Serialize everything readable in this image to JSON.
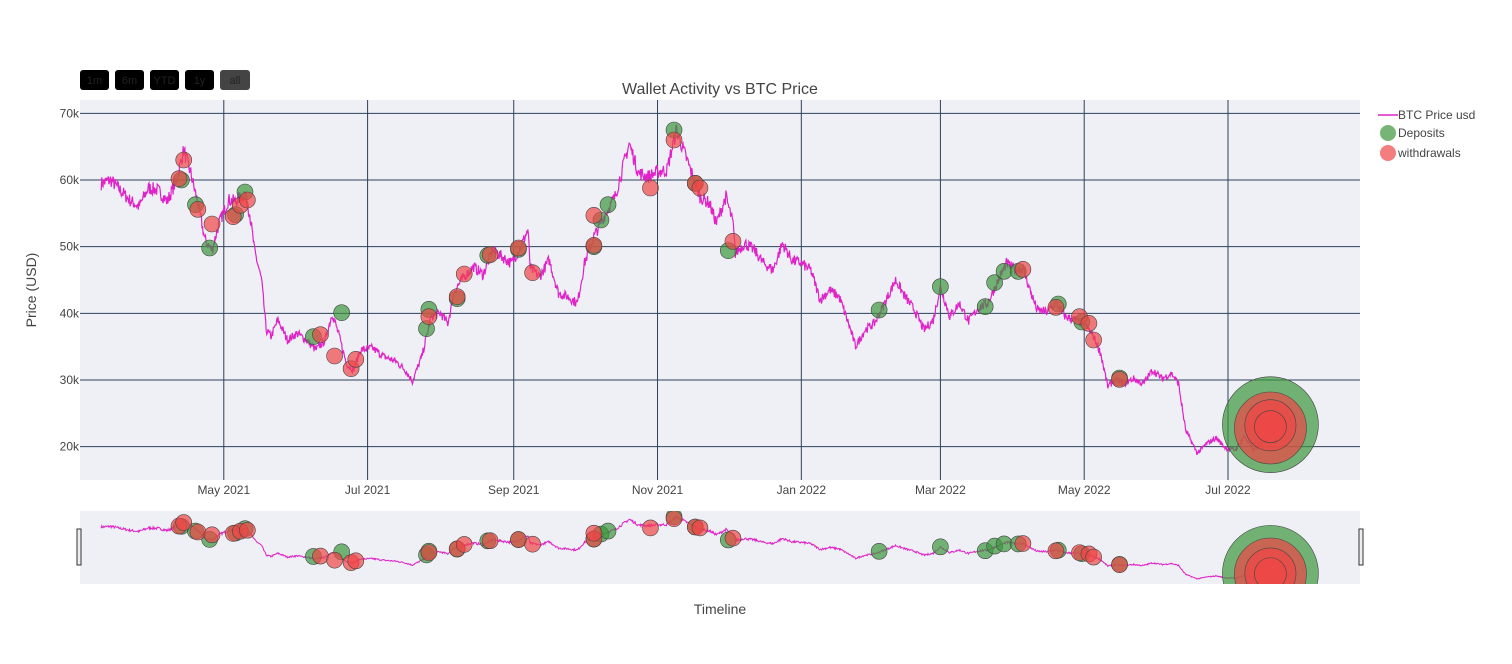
{
  "range_buttons": [
    {
      "label": "1m",
      "active": false
    },
    {
      "label": "6m",
      "active": false
    },
    {
      "label": "YTD",
      "active": false
    },
    {
      "label": "1y",
      "active": false
    },
    {
      "label": "all",
      "active": true
    }
  ],
  "colors": {
    "price_line": "#e022c8",
    "deposit_fill": "#3c963c",
    "withdrawal_fill": "#f04646",
    "plot_bg": "#eef0f5",
    "grid": "#2e3f5c"
  },
  "chart_data": {
    "type": "line",
    "title": "Wallet Activity vs BTC Price",
    "xlabel": "Timeline",
    "ylabel": "Price (USD)",
    "xlim": [
      "2021-03-01",
      "2022-08-26"
    ],
    "ylim": [
      15000,
      72000
    ],
    "x_ticks": [
      {
        "date": "2021-05-01",
        "label": "May 2021"
      },
      {
        "date": "2021-07-01",
        "label": "Jul 2021"
      },
      {
        "date": "2021-09-01",
        "label": "Sep 2021"
      },
      {
        "date": "2021-11-01",
        "label": "Nov 2021"
      },
      {
        "date": "2022-01-01",
        "label": "Jan 2022"
      },
      {
        "date": "2022-03-01",
        "label": "Mar 2022"
      },
      {
        "date": "2022-05-01",
        "label": "May 2022"
      },
      {
        "date": "2022-07-01",
        "label": "Jul 2022"
      }
    ],
    "y_ticks": [
      {
        "value": 20000,
        "label": "20k"
      },
      {
        "value": 30000,
        "label": "30k"
      },
      {
        "value": 40000,
        "label": "40k"
      },
      {
        "value": 50000,
        "label": "50k"
      },
      {
        "value": 60000,
        "label": "60k"
      },
      {
        "value": 70000,
        "label": "70k"
      }
    ],
    "grid": true,
    "legend_position": "top-right",
    "series": [
      {
        "name": "BTC Price usd",
        "kind": "line",
        "points": [
          [
            "2021-03-10",
            59500
          ],
          [
            "2021-03-14",
            60000
          ],
          [
            "2021-03-18",
            58500
          ],
          [
            "2021-03-22",
            57000
          ],
          [
            "2021-03-26",
            56000
          ],
          [
            "2021-03-30",
            58800
          ],
          [
            "2021-04-03",
            58500
          ],
          [
            "2021-04-07",
            56800
          ],
          [
            "2021-04-11",
            60000
          ],
          [
            "2021-04-14",
            64500
          ],
          [
            "2021-04-17",
            61000
          ],
          [
            "2021-04-20",
            56500
          ],
          [
            "2021-04-23",
            51000
          ],
          [
            "2021-04-26",
            49500
          ],
          [
            "2021-04-29",
            53500
          ],
          [
            "2021-05-03",
            57000
          ],
          [
            "2021-05-06",
            56800
          ],
          [
            "2021-05-10",
            58000
          ],
          [
            "2021-05-12",
            55000
          ],
          [
            "2021-05-14",
            49500
          ],
          [
            "2021-05-17",
            45000
          ],
          [
            "2021-05-19",
            37500
          ],
          [
            "2021-05-21",
            36500
          ],
          [
            "2021-05-24",
            39000
          ],
          [
            "2021-05-28",
            36000
          ],
          [
            "2021-06-01",
            37000
          ],
          [
            "2021-06-05",
            36000
          ],
          [
            "2021-06-09",
            34500
          ],
          [
            "2021-06-13",
            36000
          ],
          [
            "2021-06-16",
            40000
          ],
          [
            "2021-06-19",
            36500
          ],
          [
            "2021-06-22",
            32500
          ],
          [
            "2021-06-25",
            31500
          ],
          [
            "2021-06-28",
            34500
          ],
          [
            "2021-07-03",
            34800
          ],
          [
            "2021-07-08",
            33500
          ],
          [
            "2021-07-13",
            32800
          ],
          [
            "2021-07-17",
            31500
          ],
          [
            "2021-07-20",
            29800
          ],
          [
            "2021-07-24",
            33500
          ],
          [
            "2021-07-28",
            39500
          ],
          [
            "2021-08-01",
            40000
          ],
          [
            "2021-08-04",
            38500
          ],
          [
            "2021-08-07",
            43500
          ],
          [
            "2021-08-11",
            45500
          ],
          [
            "2021-08-15",
            47000
          ],
          [
            "2021-08-19",
            45800
          ],
          [
            "2021-08-23",
            49500
          ],
          [
            "2021-08-27",
            48500
          ],
          [
            "2021-08-31",
            47500
          ],
          [
            "2021-09-04",
            50000
          ],
          [
            "2021-09-07",
            52500
          ],
          [
            "2021-09-08",
            46800
          ],
          [
            "2021-09-12",
            45500
          ],
          [
            "2021-09-16",
            48000
          ],
          [
            "2021-09-20",
            43000
          ],
          [
            "2021-09-24",
            42500
          ],
          [
            "2021-09-28",
            41500
          ],
          [
            "2021-10-01",
            47500
          ],
          [
            "2021-10-05",
            51500
          ],
          [
            "2021-10-10",
            55000
          ],
          [
            "2021-10-14",
            57500
          ],
          [
            "2021-10-17",
            61500
          ],
          [
            "2021-10-20",
            65500
          ],
          [
            "2021-10-24",
            61000
          ],
          [
            "2021-10-28",
            60500
          ],
          [
            "2021-11-01",
            61200
          ],
          [
            "2021-11-05",
            61500
          ],
          [
            "2021-11-09",
            67500
          ],
          [
            "2021-11-12",
            64500
          ],
          [
            "2021-11-16",
            60500
          ],
          [
            "2021-11-19",
            57500
          ],
          [
            "2021-11-23",
            56500
          ],
          [
            "2021-11-26",
            53500
          ],
          [
            "2021-11-30",
            57500
          ],
          [
            "2021-12-03",
            53500
          ],
          [
            "2021-12-04",
            49000
          ],
          [
            "2021-12-08",
            50500
          ],
          [
            "2021-12-12",
            49500
          ],
          [
            "2021-12-16",
            47500
          ],
          [
            "2021-12-20",
            46500
          ],
          [
            "2021-12-24",
            50500
          ],
          [
            "2021-12-28",
            48000
          ],
          [
            "2022-01-01",
            47500
          ],
          [
            "2022-01-05",
            46500
          ],
          [
            "2022-01-09",
            42000
          ],
          [
            "2022-01-13",
            43500
          ],
          [
            "2022-01-17",
            42500
          ],
          [
            "2022-01-21",
            38500
          ],
          [
            "2022-01-24",
            35000
          ],
          [
            "2022-01-28",
            37500
          ],
          [
            "2022-02-01",
            38500
          ],
          [
            "2022-02-06",
            42000
          ],
          [
            "2022-02-10",
            45000
          ],
          [
            "2022-02-14",
            42500
          ],
          [
            "2022-02-18",
            40500
          ],
          [
            "2022-02-22",
            37500
          ],
          [
            "2022-02-26",
            39000
          ],
          [
            "2022-03-01",
            44000
          ],
          [
            "2022-03-05",
            39500
          ],
          [
            "2022-03-09",
            41500
          ],
          [
            "2022-03-13",
            38800
          ],
          [
            "2022-03-17",
            40800
          ],
          [
            "2022-03-21",
            41500
          ],
          [
            "2022-03-25",
            44500
          ],
          [
            "2022-03-29",
            47500
          ],
          [
            "2022-04-02",
            46500
          ],
          [
            "2022-04-05",
            46800
          ],
          [
            "2022-04-08",
            43500
          ],
          [
            "2022-04-11",
            40500
          ],
          [
            "2022-04-15",
            40200
          ],
          [
            "2022-04-19",
            41500
          ],
          [
            "2022-04-23",
            39500
          ],
          [
            "2022-04-27",
            39000
          ],
          [
            "2022-05-01",
            38500
          ],
          [
            "2022-05-05",
            36500
          ],
          [
            "2022-05-08",
            34000
          ],
          [
            "2022-05-11",
            29000
          ],
          [
            "2022-05-14",
            30000
          ],
          [
            "2022-05-18",
            29500
          ],
          [
            "2022-05-22",
            30200
          ],
          [
            "2022-05-26",
            29400
          ],
          [
            "2022-05-30",
            31500
          ],
          [
            "2022-06-03",
            30200
          ],
          [
            "2022-06-07",
            31000
          ],
          [
            "2022-06-10",
            29500
          ],
          [
            "2022-06-13",
            22500
          ],
          [
            "2022-06-18",
            19000
          ],
          [
            "2022-06-22",
            20500
          ],
          [
            "2022-06-26",
            21300
          ],
          [
            "2022-06-30",
            19800
          ],
          [
            "2022-07-04",
            19500
          ],
          [
            "2022-07-08",
            21500
          ],
          [
            "2022-07-12",
            19500
          ],
          [
            "2022-07-16",
            20800
          ],
          [
            "2022-07-19",
            23000
          ],
          [
            "2022-07-21",
            23200
          ]
        ]
      },
      {
        "name": "Deposits",
        "kind": "markers",
        "points": [
          [
            "2021-04-13",
            60000,
            1
          ],
          [
            "2021-04-19",
            56300,
            1
          ],
          [
            "2021-04-25",
            49800,
            1
          ],
          [
            "2021-05-06",
            54800,
            1
          ],
          [
            "2021-05-10",
            58200,
            1
          ],
          [
            "2021-06-08",
            36500,
            1
          ],
          [
            "2021-06-20",
            40100,
            1
          ],
          [
            "2021-07-26",
            37700,
            1
          ],
          [
            "2021-07-27",
            40600,
            1
          ],
          [
            "2021-08-08",
            42200,
            1
          ],
          [
            "2021-08-21",
            48700,
            1
          ],
          [
            "2021-09-03",
            49600,
            1
          ],
          [
            "2021-10-05",
            50000,
            1
          ],
          [
            "2021-10-08",
            54000,
            1
          ],
          [
            "2021-10-11",
            56300,
            1
          ],
          [
            "2021-11-08",
            67500,
            1
          ],
          [
            "2021-11-17",
            59500,
            1
          ],
          [
            "2021-12-01",
            49400,
            1
          ],
          [
            "2022-02-03",
            40500,
            1
          ],
          [
            "2022-03-01",
            44000,
            1
          ],
          [
            "2022-03-20",
            41000,
            1
          ],
          [
            "2022-03-24",
            44600,
            1
          ],
          [
            "2022-03-28",
            46300,
            1
          ],
          [
            "2022-04-03",
            46300,
            1
          ],
          [
            "2022-04-20",
            41400,
            1
          ],
          [
            "2022-04-30",
            38700,
            1
          ],
          [
            "2022-05-16",
            30300,
            1
          ],
          [
            "2022-07-19",
            23300,
            6
          ]
        ]
      },
      {
        "name": "withdrawals",
        "kind": "markers",
        "points": [
          [
            "2021-04-12",
            60200,
            1
          ],
          [
            "2021-04-14",
            63000,
            1
          ],
          [
            "2021-04-20",
            55600,
            1
          ],
          [
            "2021-04-26",
            53400,
            1
          ],
          [
            "2021-05-05",
            54500,
            1
          ],
          [
            "2021-05-08",
            56200,
            1
          ],
          [
            "2021-05-11",
            57000,
            1
          ],
          [
            "2021-06-11",
            36800,
            1
          ],
          [
            "2021-06-17",
            33600,
            1
          ],
          [
            "2021-06-24",
            31700,
            1
          ],
          [
            "2021-06-26",
            33100,
            1
          ],
          [
            "2021-07-27",
            39500,
            1
          ],
          [
            "2021-08-08",
            42500,
            1
          ],
          [
            "2021-08-11",
            45900,
            1
          ],
          [
            "2021-08-22",
            48800,
            1
          ],
          [
            "2021-09-03",
            49800,
            1
          ],
          [
            "2021-09-09",
            46100,
            1
          ],
          [
            "2021-10-05",
            50200,
            1
          ],
          [
            "2021-10-05",
            54700,
            1
          ],
          [
            "2021-10-29",
            58800,
            1
          ],
          [
            "2021-11-08",
            66000,
            1
          ],
          [
            "2021-11-17",
            59500,
            1
          ],
          [
            "2021-11-19",
            58800,
            1
          ],
          [
            "2021-12-03",
            50800,
            1
          ],
          [
            "2022-04-05",
            46600,
            1
          ],
          [
            "2022-04-19",
            40900,
            1
          ],
          [
            "2022-04-29",
            39500,
            1
          ],
          [
            "2022-05-03",
            38500,
            1
          ],
          [
            "2022-05-05",
            36000,
            1
          ],
          [
            "2022-05-16",
            30100,
            1
          ],
          [
            "2022-07-19",
            22800,
            4.5
          ],
          [
            "2022-07-19",
            23200,
            3.2
          ],
          [
            "2022-07-19",
            23000,
            2
          ]
        ]
      }
    ]
  }
}
